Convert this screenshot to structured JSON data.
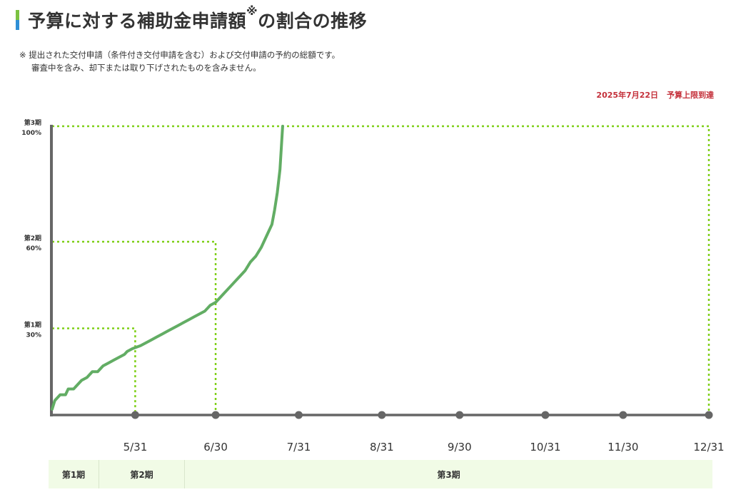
{
  "title": {
    "main": "予算に対する補助金申請額",
    "mark": "※",
    "tail": "の割合の推移"
  },
  "note": {
    "line1": "※ 提出された交付申請（条件付き交付申請を含む）および交付申請の予約の総額です。",
    "line2": "審査中を含み、却下または取り下げされたものを含みません。"
  },
  "status": {
    "date": "2025年7月22日",
    "label": "予算上限到達"
  },
  "colors": {
    "line": "#62ad64",
    "threshold": "#7ecf16",
    "axis": "#666666",
    "marker": "#666666",
    "status": "#c4303a",
    "band": "#f1fbe6"
  },
  "periods": [
    {
      "label": "第1期"
    },
    {
      "label": "第2期"
    },
    {
      "label": "第3期"
    }
  ],
  "chart_data": {
    "type": "line",
    "x_axis": {
      "ticks": [
        "5/31",
        "6/30",
        "7/31",
        "8/31",
        "9/30",
        "10/31",
        "11/30",
        "12/31"
      ],
      "tick_days": [
        31,
        61,
        92,
        123,
        152,
        184,
        213,
        245
      ],
      "start_day": 0
    },
    "y_axis": {
      "ylim": [
        0,
        100
      ],
      "unit": "%"
    },
    "thresholds": [
      {
        "period": "第1期",
        "percent_label": "30%",
        "value": 30,
        "end_day": 31
      },
      {
        "period": "第2期",
        "percent_label": "60%",
        "value": 60,
        "end_day": 61
      },
      {
        "period": "第3期",
        "percent_label": "100%",
        "value": 100,
        "end_day": 245
      }
    ],
    "series": [
      {
        "points": [
          [
            0,
            2
          ],
          [
            1,
            5
          ],
          [
            3,
            7
          ],
          [
            5,
            7
          ],
          [
            6,
            9
          ],
          [
            8,
            9
          ],
          [
            9,
            10
          ],
          [
            11,
            12
          ],
          [
            13,
            13
          ],
          [
            15,
            15
          ],
          [
            17,
            15
          ],
          [
            19,
            17
          ],
          [
            21,
            18
          ],
          [
            23,
            19
          ],
          [
            25,
            20
          ],
          [
            27,
            21
          ],
          [
            28,
            22
          ],
          [
            30,
            23
          ],
          [
            33,
            24
          ],
          [
            35,
            25
          ],
          [
            37,
            26
          ],
          [
            39,
            27
          ],
          [
            41,
            28
          ],
          [
            43,
            29
          ],
          [
            45,
            30
          ],
          [
            47,
            31
          ],
          [
            49,
            32
          ],
          [
            51,
            33
          ],
          [
            53,
            34
          ],
          [
            55,
            35
          ],
          [
            57,
            36
          ],
          [
            59,
            38
          ],
          [
            61,
            39
          ],
          [
            62,
            40
          ],
          [
            64,
            42
          ],
          [
            66,
            44
          ],
          [
            68,
            46
          ],
          [
            70,
            48
          ],
          [
            72,
            50
          ],
          [
            74,
            53
          ],
          [
            76,
            55
          ],
          [
            78,
            58
          ],
          [
            80,
            62
          ],
          [
            82,
            66
          ],
          [
            83,
            71
          ],
          [
            84,
            77
          ],
          [
            85,
            85
          ],
          [
            86,
            100
          ]
        ]
      }
    ]
  }
}
